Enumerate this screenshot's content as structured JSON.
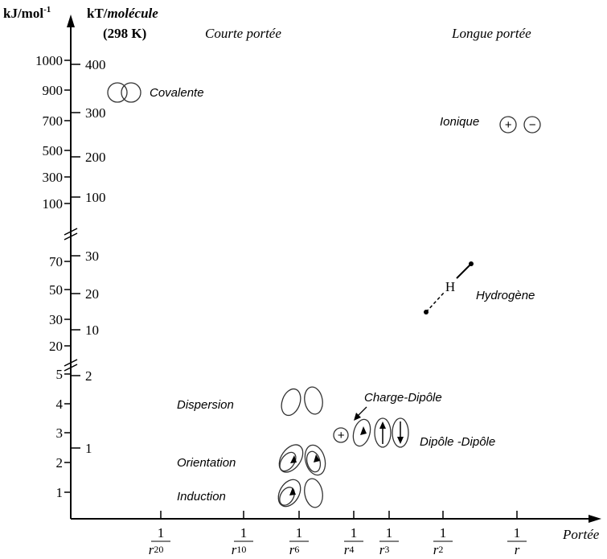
{
  "axes": {
    "left_label": "kJ/mol",
    "left_label_exponent": "-1",
    "right_label_prefix": "kT/",
    "right_label_italic": "molécule",
    "temperature": "(298 K)",
    "x_label": "Portée",
    "left_ticks": [
      "1000",
      "900",
      "700",
      "500",
      "300",
      "100",
      "70",
      "50",
      "30",
      "20",
      "5",
      "4",
      "3",
      "2",
      "1"
    ],
    "right_ticks": [
      "400",
      "300",
      "200",
      "100",
      "30",
      "20",
      "10",
      "2",
      "1"
    ],
    "x_ticks": [
      {
        "numerator": "1",
        "base": "r",
        "exponent": "20"
      },
      {
        "numerator": "1",
        "base": "r",
        "exponent": "10"
      },
      {
        "numerator": "1",
        "base": "r",
        "exponent": "6"
      },
      {
        "numerator": "1",
        "base": "r",
        "exponent": "4"
      },
      {
        "numerator": "1",
        "base": "r",
        "exponent": "3"
      },
      {
        "numerator": "1",
        "base": "r",
        "exponent": "2"
      },
      {
        "numerator": "1",
        "base": "r"
      }
    ]
  },
  "regions": {
    "short": "Courte portée",
    "long": "Longue portée"
  },
  "interactions": {
    "covalent": "Covalente",
    "ionic": "Ionique",
    "ionic_plus": "+",
    "ionic_minus": "−",
    "hydrogen": "Hydrogène",
    "hydrogen_symbol": "H",
    "dispersion": "Dispersion",
    "orientation": "Orientation",
    "induction": "Induction",
    "charge_dipole": "Charge-Dipôle",
    "charge_plus": "+",
    "dipole_dipole": "Dipôle -Dipôle"
  }
}
